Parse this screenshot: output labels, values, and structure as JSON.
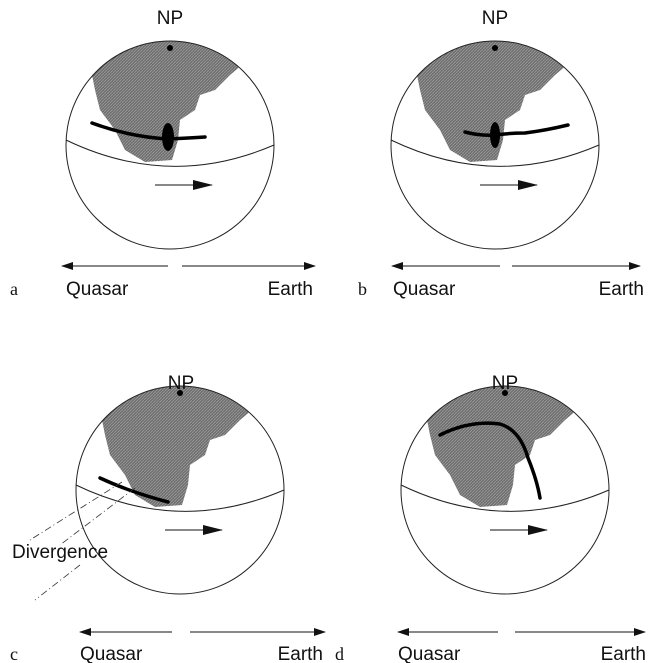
{
  "panels": [
    {
      "label": "a",
      "pole": "NP",
      "left": "Quasar",
      "right": "Earth"
    },
    {
      "label": "b",
      "pole": "NP",
      "left": "Quasar",
      "right": "Earth"
    },
    {
      "label": "c",
      "pole": "NP",
      "left": "Quasar",
      "right": "Earth"
    },
    {
      "label": "d",
      "pole": "NP",
      "left": "Quasar",
      "right": "Earth"
    }
  ],
  "annotation": "Divergence"
}
